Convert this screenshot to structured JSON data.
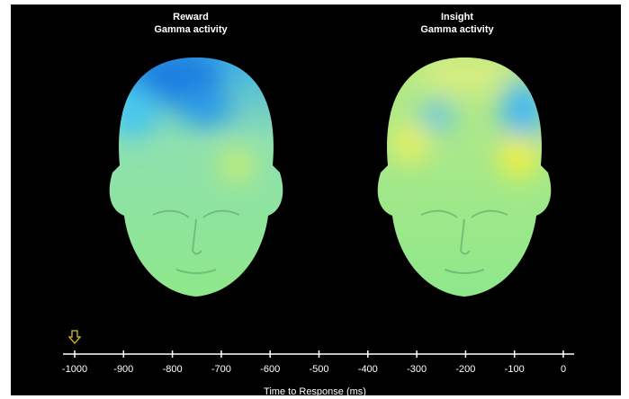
{
  "panels": [
    {
      "title": "Reward",
      "subtitle": "Gamma activity"
    },
    {
      "title": "Insight",
      "subtitle": "Gamma activity"
    }
  ],
  "timeline": {
    "xlim": [
      -1000,
      0
    ],
    "xticks": [
      -1000,
      -900,
      -800,
      -700,
      -600,
      -500,
      -400,
      -300,
      -200,
      -100,
      0
    ],
    "label": "Time to Response (ms)",
    "marker": -1000
  }
}
